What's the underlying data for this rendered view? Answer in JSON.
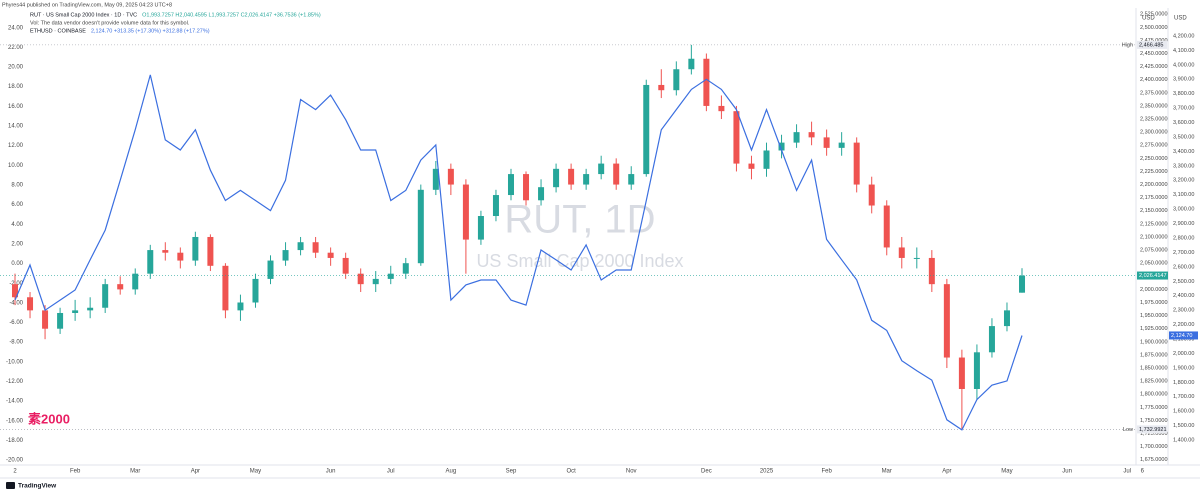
{
  "header": {
    "published": "Phyres44 published on TradingView.com, May 09, 2025 04:23 UTC+8",
    "volume_note": "Vol: The data vendor doesn't provide volume data for this symbol."
  },
  "footer": {
    "brand": "TradingView"
  },
  "chart_data": {
    "type": "candlestick",
    "watermark_title": "RUT, 1D",
    "watermark_subtitle": "US Small Cap 2000 Index",
    "annotation": "素2000",
    "axis_unit": "USD",
    "grid": false,
    "categories": [
      "2",
      null,
      null,
      null,
      "Feb",
      null,
      null,
      null,
      "Mar",
      null,
      null,
      null,
      "Apr",
      null,
      null,
      null,
      "May",
      null,
      null,
      null,
      null,
      "Jun",
      null,
      null,
      null,
      "Jul",
      null,
      null,
      null,
      "Aug",
      null,
      null,
      null,
      "Sep",
      null,
      null,
      null,
      "Oct",
      null,
      null,
      null,
      "Nov",
      null,
      null,
      null,
      null,
      "Dec",
      null,
      null,
      null,
      "2025",
      null,
      null,
      null,
      "Feb",
      null,
      null,
      null,
      "Mar",
      null,
      null,
      null,
      "Apr",
      null,
      null,
      null,
      "May",
      null,
      null,
      null,
      "Jun",
      null,
      null,
      null,
      "Jul",
      "6"
    ],
    "series": [
      {
        "name": "RUT · US Small Cap 2000 Index · 1D · TVC",
        "legend_values": "O1,993.7257 H2,040.4595 L1,993.7257 C2,026.4147 +36.7536 (+1.85%)",
        "up_color": "#26a69a",
        "down_color": "#ef5350",
        "last_label": "2,026.4147",
        "open": [
          2010,
          1985,
          1960,
          1925,
          1955,
          1960,
          1965,
          2010,
          2000,
          2030,
          2075,
          2070,
          2055,
          2100,
          2045,
          1960,
          1975,
          2020,
          2055,
          2075,
          2090,
          2070,
          2060,
          2030,
          2010,
          2020,
          2030,
          2050,
          2190,
          2230,
          2200,
          2095,
          2140,
          2180,
          2220,
          2170,
          2195,
          2230,
          2200,
          2220,
          2240,
          2200,
          2220,
          2390,
          2380,
          2420,
          2440,
          2350,
          2340,
          2240,
          2230,
          2265,
          2280,
          2300,
          2290,
          2270,
          2280,
          2200,
          2160,
          2080,
          2060,
          2060,
          2010,
          1870,
          1810,
          1880,
          1930,
          1993.7257,
          null,
          null,
          null,
          null,
          null,
          null,
          null,
          null
        ],
        "high": [
          2030,
          1995,
          1970,
          1965,
          1980,
          1985,
          2020,
          2025,
          2040,
          2085,
          2090,
          2080,
          2110,
          2105,
          2050,
          1990,
          2030,
          2065,
          2090,
          2100,
          2100,
          2080,
          2070,
          2040,
          2035,
          2045,
          2060,
          2200,
          2245,
          2240,
          2210,
          2150,
          2190,
          2230,
          2225,
          2210,
          2240,
          2240,
          2230,
          2255,
          2250,
          2235,
          2400,
          2420,
          2435,
          2466.485,
          2450,
          2370,
          2350,
          2255,
          2280,
          2295,
          2315,
          2320,
          2305,
          2300,
          2290,
          2215,
          2170,
          2100,
          2080,
          2075,
          2020,
          1885,
          1895,
          1945,
          1975,
          2040.4595,
          null,
          null,
          null,
          null,
          null,
          null,
          null,
          null
        ],
        "low": [
          1970,
          1945,
          1905,
          1915,
          1940,
          1945,
          1955,
          1990,
          1990,
          2020,
          2055,
          2040,
          2045,
          2035,
          1945,
          1940,
          1965,
          2010,
          2045,
          2065,
          2060,
          2045,
          2020,
          1995,
          1995,
          2010,
          2020,
          2045,
          2180,
          2180,
          2030,
          2085,
          2130,
          2170,
          2160,
          2160,
          2185,
          2190,
          2190,
          2210,
          2190,
          2190,
          2215,
          2365,
          2370,
          2410,
          2340,
          2325,
          2225,
          2210,
          2215,
          2250,
          2270,
          2275,
          2255,
          2255,
          2185,
          2145,
          2065,
          2040,
          2040,
          1995,
          1850,
          1732.9921,
          1790,
          1870,
          1920,
          1993.7257,
          null,
          null,
          null,
          null,
          null,
          null,
          null,
          null
        ],
        "close": [
          1985,
          1960,
          1925,
          1955,
          1960,
          1965,
          2010,
          2000,
          2030,
          2075,
          2070,
          2055,
          2100,
          2045,
          1960,
          1975,
          2020,
          2055,
          2075,
          2090,
          2070,
          2060,
          2030,
          2010,
          2020,
          2030,
          2050,
          2190,
          2230,
          2200,
          2095,
          2140,
          2180,
          2220,
          2170,
          2195,
          2230,
          2200,
          2220,
          2240,
          2200,
          2220,
          2390,
          2380,
          2420,
          2440,
          2350,
          2340,
          2240,
          2230,
          2265,
          2280,
          2300,
          2290,
          2270,
          2280,
          2200,
          2160,
          2080,
          2060,
          2060,
          2010,
          1870,
          1810,
          1880,
          1930,
          1960,
          2026.4147,
          null,
          null,
          null,
          null,
          null,
          null,
          null,
          null
        ]
      },
      {
        "name": "ETHUSD · COINBASE",
        "legend_values": "2,124.70 +313.35 (+17.30%) +312.88 (+17.27%)",
        "color": "#3b6fe0",
        "axis": "y2",
        "last_label": "2,124.70",
        "values": [
          2370,
          2613,
          2300,
          2370,
          2440,
          2648,
          2855,
          3200,
          3550,
          3930,
          3480,
          3410,
          3550,
          3270,
          3060,
          3130,
          3060,
          2990,
          3200,
          3760,
          3690,
          3790,
          3620,
          3410,
          3410,
          3060,
          3130,
          3340,
          3445,
          2370,
          2475,
          2509,
          2509,
          2370,
          2335,
          2717,
          2648,
          2578,
          2752,
          2509,
          2578,
          2578,
          3060,
          3550,
          3690,
          3830,
          3900,
          3830,
          3690,
          3410,
          3690,
          3410,
          3130,
          3340,
          2790,
          2650,
          2510,
          2230,
          2160,
          1950,
          1880,
          1815,
          1540,
          1470,
          1680,
          1780,
          1810,
          2124.7,
          null,
          null,
          null,
          null,
          null,
          null,
          null,
          null
        ]
      }
    ],
    "high": {
      "label": "High",
      "value": 2466.485,
      "value_label": "2,466.485"
    },
    "low": {
      "label": "Low",
      "value": 1732.9921,
      "value_label": "1,732.9921"
    },
    "ylim": [
      1665,
      2533
    ],
    "yticks": [
      {
        "value": 1675,
        "label": "1,675.0000"
      },
      {
        "value": 1700,
        "label": "1,700.0000"
      },
      {
        "value": 1725,
        "label": "1,725.0000"
      },
      {
        "value": 1750,
        "label": "1,750.0000"
      },
      {
        "value": 1775,
        "label": "1,775.0000"
      },
      {
        "value": 1800,
        "label": "1,800.0000"
      },
      {
        "value": 1825,
        "label": "1,825.0000"
      },
      {
        "value": 1850,
        "label": "1,850.0000"
      },
      {
        "value": 1875,
        "label": "1,875.0000"
      },
      {
        "value": 1900,
        "label": "1,900.0000"
      },
      {
        "value": 1925,
        "label": "1,925.0000"
      },
      {
        "value": 1950,
        "label": "1,950.0000"
      },
      {
        "value": 1975,
        "label": "1,975.0000"
      },
      {
        "value": 2000,
        "label": "2,000.0000"
      },
      {
        "value": 2025,
        "label": "2,025.0000"
      },
      {
        "value": 2050,
        "label": "2,050.0000"
      },
      {
        "value": 2075,
        "label": "2,075.0000"
      },
      {
        "value": 2100,
        "label": "2,100.0000"
      },
      {
        "value": 2125,
        "label": "2,125.0000"
      },
      {
        "value": 2150,
        "label": "2,150.0000"
      },
      {
        "value": 2175,
        "label": "2,175.0000"
      },
      {
        "value": 2200,
        "label": "2,200.0000"
      },
      {
        "value": 2225,
        "label": "2,225.0000"
      },
      {
        "value": 2250,
        "label": "2,250.0000"
      },
      {
        "value": 2275,
        "label": "2,275.0000"
      },
      {
        "value": 2300,
        "label": "2,300.0000"
      },
      {
        "value": 2325,
        "label": "2,325.0000"
      },
      {
        "value": 2350,
        "label": "2,350.0000"
      },
      {
        "value": 2375,
        "label": "2,375.0000"
      },
      {
        "value": 2400,
        "label": "2,400.0000"
      },
      {
        "value": 2425,
        "label": "2,425.0000"
      },
      {
        "value": 2450,
        "label": "2,450.0000"
      },
      {
        "value": 2475,
        "label": "2,475.0000"
      },
      {
        "value": 2500,
        "label": "2,500.0000"
      },
      {
        "value": 2525,
        "label": "2,525.0000"
      }
    ],
    "y2lim": [
      1227,
      4380
    ],
    "y2ticks": [
      {
        "value": 1400,
        "label": "1,400.00"
      },
      {
        "value": 1500,
        "label": "1,500.00"
      },
      {
        "value": 1600,
        "label": "1,600.00"
      },
      {
        "value": 1700,
        "label": "1,700.00"
      },
      {
        "value": 1800,
        "label": "1,800.00"
      },
      {
        "value": 1900,
        "label": "1,900.00"
      },
      {
        "value": 2000,
        "label": "2,000.00"
      },
      {
        "value": 2100,
        "label": "2,100.00"
      },
      {
        "value": 2200,
        "label": "2,200.00"
      },
      {
        "value": 2300,
        "label": "2,300.00"
      },
      {
        "value": 2400,
        "label": "2,400.00"
      },
      {
        "value": 2500,
        "label": "2,500.00"
      },
      {
        "value": 2600,
        "label": "2,600.00"
      },
      {
        "value": 2700,
        "label": "2,700.00"
      },
      {
        "value": 2800,
        "label": "2,800.00"
      },
      {
        "value": 2900,
        "label": "2,900.00"
      },
      {
        "value": 3000,
        "label": "3,000.00"
      },
      {
        "value": 3100,
        "label": "3,100.00"
      },
      {
        "value": 3200,
        "label": "3,200.00"
      },
      {
        "value": 3300,
        "label": "3,300.00"
      },
      {
        "value": 3400,
        "label": "3,400.00"
      },
      {
        "value": 3500,
        "label": "3,500.00"
      },
      {
        "value": 3600,
        "label": "3,600.00"
      },
      {
        "value": 3700,
        "label": "3,700.00"
      },
      {
        "value": 3800,
        "label": "3,800.00"
      },
      {
        "value": 3900,
        "label": "3,900.00"
      },
      {
        "value": 4000,
        "label": "4,000.00"
      },
      {
        "value": 4100,
        "label": "4,100.00"
      },
      {
        "value": 4200,
        "label": "4,200.00"
      }
    ],
    "left_ylim": [
      -20.5,
      25.8
    ],
    "left_yticks": [
      {
        "value": -20,
        "label": "-20.00"
      },
      {
        "value": -18,
        "label": "-18.00"
      },
      {
        "value": -16,
        "label": "-16.00"
      },
      {
        "value": -14,
        "label": "-14.00"
      },
      {
        "value": -12,
        "label": "-12.00"
      },
      {
        "value": -10,
        "label": "-10.00"
      },
      {
        "value": -8,
        "label": "-8.00"
      },
      {
        "value": -6,
        "label": "-6.00"
      },
      {
        "value": -4,
        "label": "-4.00"
      },
      {
        "value": -2,
        "label": "-2.00"
      },
      {
        "value": 0,
        "label": "0.00"
      },
      {
        "value": 2,
        "label": "2.00"
      },
      {
        "value": 4,
        "label": "4.00"
      },
      {
        "value": 6,
        "label": "6.00"
      },
      {
        "value": 8,
        "label": "8.00"
      },
      {
        "value": 10,
        "label": "10.00"
      },
      {
        "value": 12,
        "label": "12.00"
      },
      {
        "value": 14,
        "label": "14.00"
      },
      {
        "value": 16,
        "label": "16.00"
      },
      {
        "value": 18,
        "label": "18.00"
      },
      {
        "value": 20,
        "label": "20.00"
      },
      {
        "value": 22,
        "label": "22.00"
      },
      {
        "value": 24,
        "label": "24.00"
      }
    ]
  }
}
